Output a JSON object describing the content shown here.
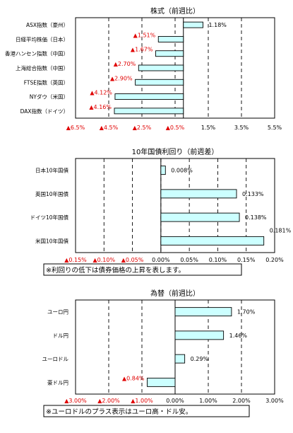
{
  "chart_data": [
    {
      "type": "bar",
      "orientation": "horizontal",
      "title": "株式（前週比）",
      "categories": [
        "ASX指数（豪州）",
        "日経平均株価（日本）",
        "香港ハンセン指数（中国）",
        "上海総合指数（中国）",
        "FTSE指数（英国）",
        "NYダウ（米国）",
        "DAX指数（ドイツ）"
      ],
      "values": [
        1.18,
        -1.51,
        -1.67,
        -2.7,
        -2.9,
        -4.12,
        -4.16
      ],
      "data_labels": [
        "1.18%",
        "▲1.51%",
        "▲1.67%",
        "▲2.70%",
        "▲2.90%",
        "▲4.12%",
        "▲4.16%"
      ],
      "xlim": [
        -6.5,
        5.5
      ],
      "ticks": [
        -6.5,
        -4.5,
        -2.5,
        -0.5,
        1.5,
        3.5,
        5.5
      ],
      "tick_labels": [
        "▲6.5%",
        "▲4.5%",
        "▲2.5%",
        "▲0.5%",
        "1.5%",
        "3.5%",
        "5.5%"
      ],
      "grid": true,
      "note": ""
    },
    {
      "type": "bar",
      "orientation": "horizontal",
      "title": "10年国債利回り（前週差）",
      "categories": [
        "日本10年国債",
        "英国10年国債",
        "ドイツ10年国債",
        "米国10年国債"
      ],
      "values": [
        0.008,
        0.133,
        0.138,
        0.181
      ],
      "data_labels": [
        "0.008%",
        "0.133%",
        "0.138%",
        "0.181%"
      ],
      "xlim": [
        -0.15,
        0.2
      ],
      "ticks": [
        -0.15,
        -0.1,
        -0.05,
        0.0,
        0.05,
        0.1,
        0.15,
        0.2
      ],
      "tick_labels": [
        "▲0.15%",
        "▲0.10%",
        "▲0.05%",
        "0.00%",
        "0.05%",
        "0.10%",
        "0.15%",
        "0.20%"
      ],
      "grid": true,
      "note": "※利回りの低下は債券価格の上昇を表します。"
    },
    {
      "type": "bar",
      "orientation": "horizontal",
      "title": "為替（前週比）",
      "categories": [
        "ユーロ円",
        "ドル円",
        "ユーロドル",
        "豪ドル円"
      ],
      "values": [
        1.7,
        1.46,
        0.29,
        -0.84
      ],
      "data_labels": [
        "1.70%",
        "1.46%",
        "0.29%",
        "▲0.84%"
      ],
      "xlim": [
        -3.0,
        3.0
      ],
      "ticks": [
        -3.0,
        -2.0,
        -1.0,
        0.0,
        1.0,
        2.0,
        3.0
      ],
      "tick_labels": [
        "▲3.00%",
        "▲2.00%",
        "▲1.00%",
        "0.00%",
        "1.00%",
        "2.00%",
        "3.00%"
      ],
      "grid": true,
      "note": "※ユーロドルのプラス表示はユーロ高・ドル安。"
    }
  ]
}
